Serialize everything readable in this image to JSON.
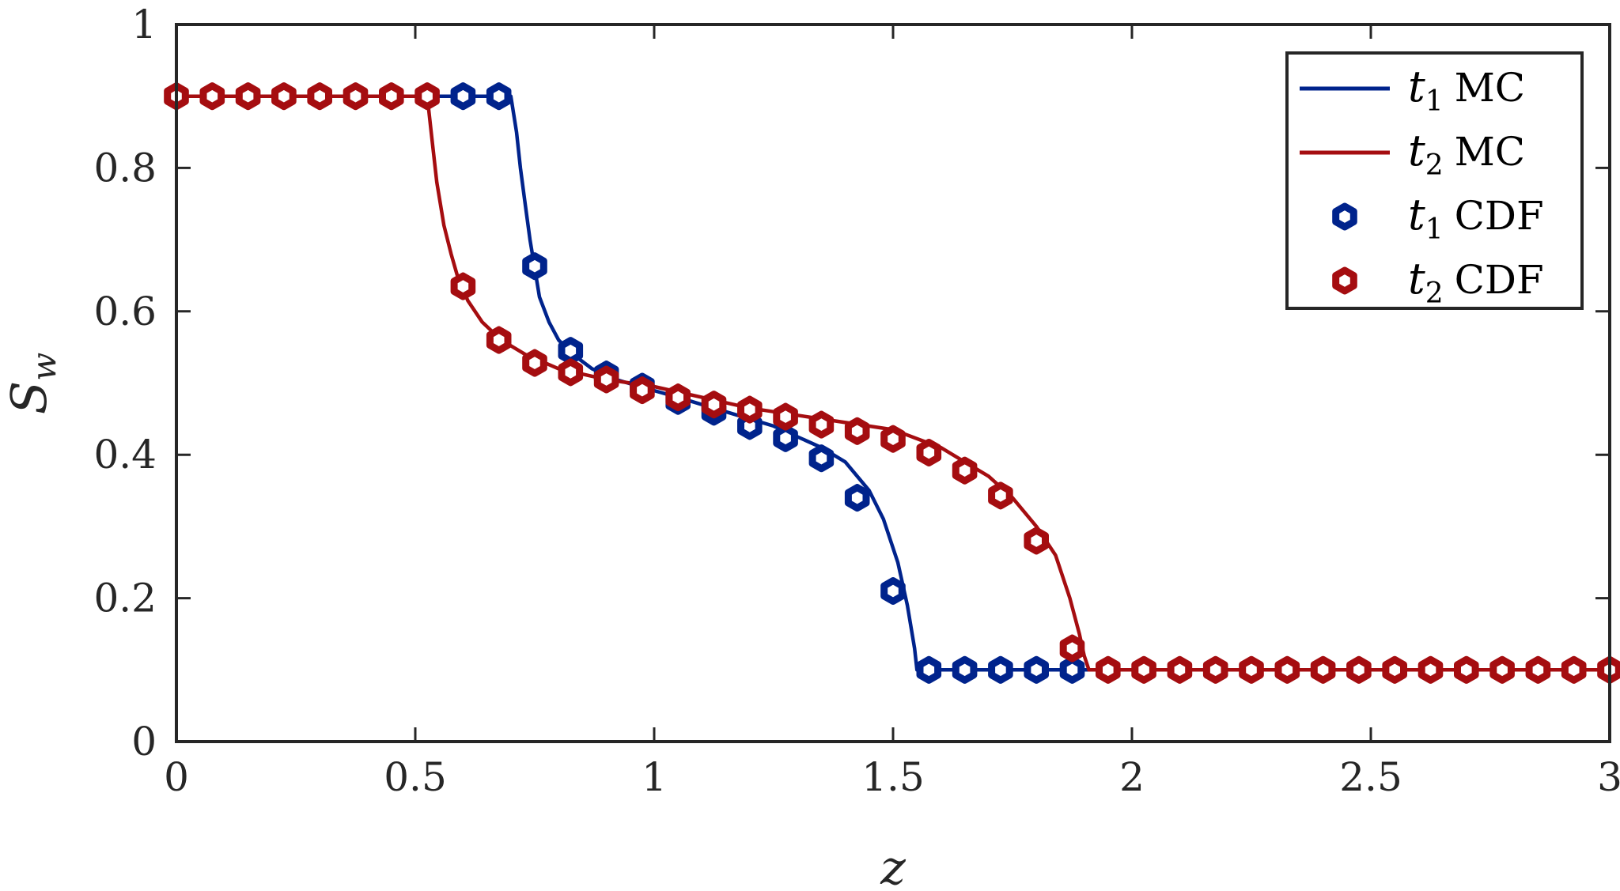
{
  "chart_data": {
    "type": "line",
    "title": "",
    "xlabel": "z",
    "ylabel": "S",
    "ylabel_sub": "w",
    "xlim": [
      0,
      3
    ],
    "ylim": [
      0,
      1
    ],
    "xticks": [
      0,
      0.5,
      1,
      1.5,
      2,
      2.5,
      3
    ],
    "xtick_labels": [
      "0",
      "0.5",
      "1",
      "1.5",
      "2",
      "2.5",
      "3"
    ],
    "yticks": [
      0,
      0.2,
      0.4,
      0.6,
      0.8,
      1
    ],
    "ytick_labels": [
      "0",
      "0.2",
      "0.4",
      "0.6",
      "0.8",
      "1"
    ],
    "grid": false,
    "legend_position": "top-right",
    "series": [
      {
        "name": "t1 MC",
        "var": "t",
        "sub": "1",
        "method": "MC",
        "kind": "line",
        "color": "#00238c",
        "x": [
          0,
          0.7,
          0.712,
          0.72,
          0.73,
          0.74,
          0.75,
          0.76,
          0.78,
          0.8,
          0.83,
          0.87,
          0.92,
          0.97,
          1.05,
          1.15,
          1.25,
          1.3,
          1.35,
          1.4,
          1.45,
          1.48,
          1.51,
          1.53,
          1.545,
          1.55,
          1.56,
          3.0
        ],
        "y": [
          0.9,
          0.9,
          0.85,
          0.8,
          0.75,
          0.7,
          0.66,
          0.62,
          0.585,
          0.56,
          0.54,
          0.52,
          0.505,
          0.495,
          0.48,
          0.46,
          0.44,
          0.425,
          0.41,
          0.39,
          0.35,
          0.31,
          0.25,
          0.19,
          0.13,
          0.1,
          0.1,
          0.1
        ]
      },
      {
        "name": "t2 MC",
        "var": "t",
        "sub": "2",
        "method": "MC",
        "kind": "line",
        "color": "#a50d10",
        "x": [
          0,
          0.525,
          0.535,
          0.545,
          0.56,
          0.575,
          0.59,
          0.61,
          0.64,
          0.68,
          0.73,
          0.8,
          0.9,
          1.0,
          1.1,
          1.2,
          1.3,
          1.4,
          1.5,
          1.56,
          1.6,
          1.65,
          1.7,
          1.75,
          1.8,
          1.84,
          1.87,
          1.89,
          1.9,
          1.91,
          3.0
        ],
        "y": [
          0.9,
          0.9,
          0.84,
          0.78,
          0.72,
          0.68,
          0.645,
          0.615,
          0.585,
          0.56,
          0.54,
          0.52,
          0.505,
          0.495,
          0.48,
          0.465,
          0.455,
          0.445,
          0.435,
          0.42,
          0.41,
          0.39,
          0.37,
          0.34,
          0.3,
          0.26,
          0.2,
          0.15,
          0.12,
          0.1,
          0.1
        ]
      },
      {
        "name": "t1 CDF",
        "var": "t",
        "sub": "1",
        "method": "CDF",
        "kind": "markers",
        "color": "#00238c",
        "x": [
          0.6,
          0.675,
          0.75,
          0.825,
          0.9,
          0.975,
          1.05,
          1.125,
          1.2,
          1.275,
          1.35,
          1.425,
          1.5,
          1.575,
          1.65,
          1.725,
          1.8,
          1.875
        ],
        "y": [
          0.9,
          0.9,
          0.663,
          0.545,
          0.512,
          0.495,
          0.475,
          0.46,
          0.44,
          0.423,
          0.395,
          0.34,
          0.21,
          0.1,
          0.1,
          0.1,
          0.1,
          0.1
        ]
      },
      {
        "name": "t2 CDF",
        "var": "t",
        "sub": "2",
        "method": "CDF",
        "kind": "markers",
        "color": "#a50d10",
        "x": [
          0,
          0.075,
          0.15,
          0.225,
          0.3,
          0.375,
          0.45,
          0.525,
          0.6,
          0.675,
          0.75,
          0.825,
          0.9,
          0.975,
          1.05,
          1.125,
          1.2,
          1.275,
          1.35,
          1.425,
          1.5,
          1.575,
          1.65,
          1.725,
          1.8,
          1.875,
          1.95,
          2.025,
          2.1,
          2.175,
          2.25,
          2.325,
          2.4,
          2.475,
          2.55,
          2.625,
          2.7,
          2.775,
          2.85,
          2.925,
          3.0
        ],
        "y": [
          0.9,
          0.9,
          0.9,
          0.9,
          0.9,
          0.9,
          0.9,
          0.9,
          0.635,
          0.56,
          0.528,
          0.515,
          0.505,
          0.49,
          0.48,
          0.47,
          0.463,
          0.453,
          0.442,
          0.433,
          0.422,
          0.403,
          0.378,
          0.343,
          0.28,
          0.13,
          0.1,
          0.1,
          0.1,
          0.1,
          0.1,
          0.1,
          0.1,
          0.1,
          0.1,
          0.1,
          0.1,
          0.1,
          0.1,
          0.1,
          0.1
        ]
      }
    ]
  }
}
